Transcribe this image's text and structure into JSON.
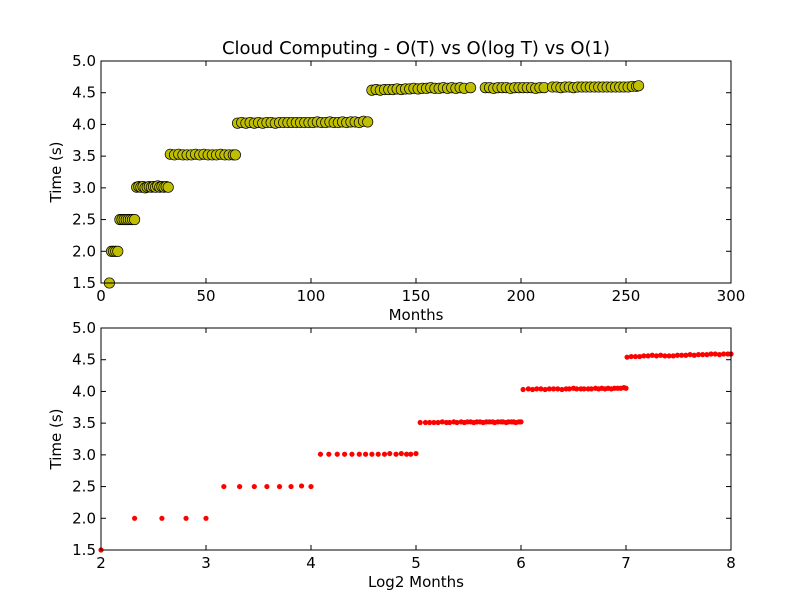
{
  "chart_data": [
    {
      "type": "scatter",
      "title": "Cloud Computing - O(T) vs O(log T) vs O(1)",
      "xlabel": "Months",
      "ylabel": "Time (s)",
      "xlim": [
        0,
        300
      ],
      "ylim": [
        1.5,
        5.0
      ],
      "xticks": [
        "0",
        "50",
        "100",
        "150",
        "200",
        "250",
        "300"
      ],
      "yticks": [
        "1.5",
        "2.0",
        "2.5",
        "3.0",
        "3.5",
        "4.0",
        "4.5",
        "5.0"
      ],
      "grid": false,
      "marker": "circle",
      "marker_color": "#bfbf00",
      "series": [
        {
          "points": [
            [
              4,
              1.5
            ],
            [
              5,
              2.0
            ],
            [
              6,
              2.0
            ],
            [
              7,
              2.0
            ],
            [
              8,
              2.0
            ],
            [
              9,
              2.5
            ],
            [
              10,
              2.5
            ],
            [
              11,
              2.5
            ],
            [
              12,
              2.5
            ],
            [
              13,
              2.5
            ],
            [
              14,
              2.5
            ],
            [
              15,
              2.5
            ],
            [
              16,
              2.5
            ],
            [
              17,
              3.01
            ],
            [
              18,
              3.02
            ],
            [
              19,
              3.01
            ],
            [
              20,
              3.02
            ],
            [
              21,
              3.0
            ],
            [
              22,
              3.01
            ],
            [
              23,
              3.02
            ],
            [
              24,
              3.01
            ],
            [
              25,
              3.02
            ],
            [
              26,
              3.01
            ],
            [
              27,
              3.03
            ],
            [
              28,
              3.01
            ],
            [
              29,
              3.02
            ],
            [
              30,
              3.01
            ],
            [
              31,
              3.02
            ],
            [
              32,
              3.01
            ],
            [
              33,
              3.53
            ],
            [
              35,
              3.52
            ],
            [
              37,
              3.53
            ],
            [
              39,
              3.52
            ],
            [
              41,
              3.52
            ],
            [
              43,
              3.52
            ],
            [
              45,
              3.53
            ],
            [
              47,
              3.52
            ],
            [
              49,
              3.53
            ],
            [
              51,
              3.52
            ],
            [
              53,
              3.52
            ],
            [
              55,
              3.52
            ],
            [
              57,
              3.53
            ],
            [
              59,
              3.52
            ],
            [
              61,
              3.52
            ],
            [
              63,
              3.52
            ],
            [
              64,
              3.52
            ],
            [
              65,
              4.02
            ],
            [
              67,
              4.03
            ],
            [
              69,
              4.02
            ],
            [
              71,
              4.03
            ],
            [
              73,
              4.02
            ],
            [
              75,
              4.03
            ],
            [
              77,
              4.02
            ],
            [
              79,
              4.03
            ],
            [
              81,
              4.03
            ],
            [
              83,
              4.02
            ],
            [
              85,
              4.03
            ],
            [
              87,
              4.03
            ],
            [
              89,
              4.03
            ],
            [
              91,
              4.03
            ],
            [
              93,
              4.03
            ],
            [
              95,
              4.03
            ],
            [
              97,
              4.03
            ],
            [
              99,
              4.03
            ],
            [
              101,
              4.03
            ],
            [
              103,
              4.04
            ],
            [
              105,
              4.03
            ],
            [
              107,
              4.03
            ],
            [
              109,
              4.04
            ],
            [
              111,
              4.03
            ],
            [
              113,
              4.03
            ],
            [
              115,
              4.04
            ],
            [
              117,
              4.03
            ],
            [
              119,
              4.04
            ],
            [
              121,
              4.04
            ],
            [
              123,
              4.03
            ],
            [
              125,
              4.05
            ],
            [
              127,
              4.04
            ],
            [
              129,
              4.54
            ],
            [
              131,
              4.55
            ],
            [
              133,
              4.54
            ],
            [
              135,
              4.55
            ],
            [
              137,
              4.55
            ],
            [
              139,
              4.55
            ],
            [
              141,
              4.56
            ],
            [
              143,
              4.55
            ],
            [
              145,
              4.56
            ],
            [
              147,
              4.56
            ],
            [
              149,
              4.57
            ],
            [
              151,
              4.56
            ],
            [
              153,
              4.57
            ],
            [
              155,
              4.57
            ],
            [
              157,
              4.58
            ],
            [
              159,
              4.57
            ],
            [
              161,
              4.57
            ],
            [
              163,
              4.58
            ],
            [
              165,
              4.57
            ],
            [
              167,
              4.58
            ],
            [
              169,
              4.57
            ],
            [
              171,
              4.58
            ],
            [
              173,
              4.57
            ],
            [
              176,
              4.58
            ],
            [
              183,
              4.58
            ],
            [
              185,
              4.58
            ],
            [
              187,
              4.57
            ],
            [
              189,
              4.58
            ],
            [
              191,
              4.58
            ],
            [
              193,
              4.58
            ],
            [
              195,
              4.57
            ],
            [
              197,
              4.58
            ],
            [
              199,
              4.58
            ],
            [
              201,
              4.58
            ],
            [
              203,
              4.58
            ],
            [
              205,
              4.58
            ],
            [
              207,
              4.57
            ],
            [
              209,
              4.58
            ],
            [
              211,
              4.58
            ],
            [
              215,
              4.59
            ],
            [
              217,
              4.59
            ],
            [
              219,
              4.58
            ],
            [
              221,
              4.59
            ],
            [
              223,
              4.59
            ],
            [
              225,
              4.58
            ],
            [
              227,
              4.59
            ],
            [
              229,
              4.59
            ],
            [
              231,
              4.59
            ],
            [
              233,
              4.59
            ],
            [
              235,
              4.59
            ],
            [
              237,
              4.59
            ],
            [
              239,
              4.59
            ],
            [
              241,
              4.59
            ],
            [
              243,
              4.59
            ],
            [
              245,
              4.59
            ],
            [
              247,
              4.59
            ],
            [
              249,
              4.59
            ],
            [
              251,
              4.59
            ],
            [
              253,
              4.6
            ],
            [
              255,
              4.6
            ],
            [
              256,
              4.61
            ]
          ]
        }
      ]
    },
    {
      "type": "scatter",
      "title": "",
      "xlabel": "Log2 Months",
      "ylabel": "Time (s)",
      "xlim": [
        2,
        8
      ],
      "ylim": [
        1.5,
        5.0
      ],
      "xticks": [
        "2",
        "3",
        "4",
        "5",
        "6",
        "7",
        "8"
      ],
      "yticks": [
        "1.5",
        "2.0",
        "2.5",
        "3.0",
        "3.5",
        "4.0",
        "4.5",
        "5.0"
      ],
      "grid": false,
      "marker": "circle",
      "marker_color": "#ff0000",
      "series": [
        {
          "points": [
            [
              2.0,
              1.5
            ],
            [
              2.32,
              2.0
            ],
            [
              2.58,
              2.0
            ],
            [
              2.81,
              2.0
            ],
            [
              3.0,
              2.0
            ],
            [
              3.17,
              2.5
            ],
            [
              3.32,
              2.5
            ],
            [
              3.46,
              2.5
            ],
            [
              3.58,
              2.5
            ],
            [
              3.7,
              2.5
            ],
            [
              3.81,
              2.5
            ],
            [
              3.91,
              2.51
            ],
            [
              4.0,
              2.5
            ],
            [
              4.09,
              3.01
            ],
            [
              4.17,
              3.01
            ],
            [
              4.25,
              3.01
            ],
            [
              4.32,
              3.01
            ],
            [
              4.39,
              3.01
            ],
            [
              4.46,
              3.01
            ],
            [
              4.52,
              3.01
            ],
            [
              4.58,
              3.01
            ],
            [
              4.64,
              3.01
            ],
            [
              4.7,
              3.01
            ],
            [
              4.75,
              3.02
            ],
            [
              4.81,
              3.01
            ],
            [
              4.86,
              3.02
            ],
            [
              4.91,
              3.01
            ],
            [
              4.95,
              3.01
            ],
            [
              5.0,
              3.02
            ],
            [
              5.04,
              3.51
            ],
            [
              5.09,
              3.51
            ],
            [
              5.13,
              3.51
            ],
            [
              5.17,
              3.51
            ],
            [
              5.21,
              3.51
            ],
            [
              5.25,
              3.52
            ],
            [
              5.29,
              3.51
            ],
            [
              5.32,
              3.51
            ],
            [
              5.36,
              3.52
            ],
            [
              5.39,
              3.51
            ],
            [
              5.43,
              3.52
            ],
            [
              5.46,
              3.51
            ],
            [
              5.49,
              3.52
            ],
            [
              5.52,
              3.52
            ],
            [
              5.55,
              3.51
            ],
            [
              5.58,
              3.52
            ],
            [
              5.61,
              3.52
            ],
            [
              5.64,
              3.51
            ],
            [
              5.67,
              3.52
            ],
            [
              5.7,
              3.52
            ],
            [
              5.73,
              3.52
            ],
            [
              5.75,
              3.51
            ],
            [
              5.78,
              3.52
            ],
            [
              5.81,
              3.52
            ],
            [
              5.83,
              3.52
            ],
            [
              5.86,
              3.51
            ],
            [
              5.88,
              3.52
            ],
            [
              5.91,
              3.52
            ],
            [
              5.93,
              3.52
            ],
            [
              5.95,
              3.51
            ],
            [
              5.98,
              3.52
            ],
            [
              6.0,
              3.52
            ],
            [
              6.02,
              4.03
            ],
            [
              6.07,
              4.04
            ],
            [
              6.11,
              4.03
            ],
            [
              6.15,
              4.04
            ],
            [
              6.19,
              4.04
            ],
            [
              6.23,
              4.03
            ],
            [
              6.27,
              4.04
            ],
            [
              6.31,
              4.04
            ],
            [
              6.35,
              4.04
            ],
            [
              6.39,
              4.03
            ],
            [
              6.43,
              4.04
            ],
            [
              6.46,
              4.04
            ],
            [
              6.5,
              4.05
            ],
            [
              6.53,
              4.04
            ],
            [
              6.57,
              4.04
            ],
            [
              6.6,
              4.04
            ],
            [
              6.64,
              4.04
            ],
            [
              6.67,
              4.04
            ],
            [
              6.71,
              4.05
            ],
            [
              6.74,
              4.04
            ],
            [
              6.77,
              4.05
            ],
            [
              6.8,
              4.04
            ],
            [
              6.83,
              4.05
            ],
            [
              6.86,
              4.04
            ],
            [
              6.89,
              4.05
            ],
            [
              6.92,
              4.05
            ],
            [
              6.95,
              4.05
            ],
            [
              6.98,
              4.06
            ],
            [
              7.0,
              4.05
            ],
            [
              7.01,
              4.54
            ],
            [
              7.05,
              4.55
            ],
            [
              7.09,
              4.55
            ],
            [
              7.13,
              4.55
            ],
            [
              7.17,
              4.56
            ],
            [
              7.21,
              4.56
            ],
            [
              7.25,
              4.57
            ],
            [
              7.29,
              4.56
            ],
            [
              7.33,
              4.57
            ],
            [
              7.37,
              4.56
            ],
            [
              7.41,
              4.56
            ],
            [
              7.45,
              4.56
            ],
            [
              7.49,
              4.57
            ],
            [
              7.53,
              4.57
            ],
            [
              7.57,
              4.57
            ],
            [
              7.61,
              4.58
            ],
            [
              7.65,
              4.57
            ],
            [
              7.69,
              4.58
            ],
            [
              7.73,
              4.58
            ],
            [
              7.77,
              4.58
            ],
            [
              7.81,
              4.59
            ],
            [
              7.85,
              4.59
            ],
            [
              7.89,
              4.58
            ],
            [
              7.93,
              4.59
            ],
            [
              7.97,
              4.59
            ],
            [
              8.0,
              4.59
            ]
          ]
        }
      ]
    }
  ]
}
